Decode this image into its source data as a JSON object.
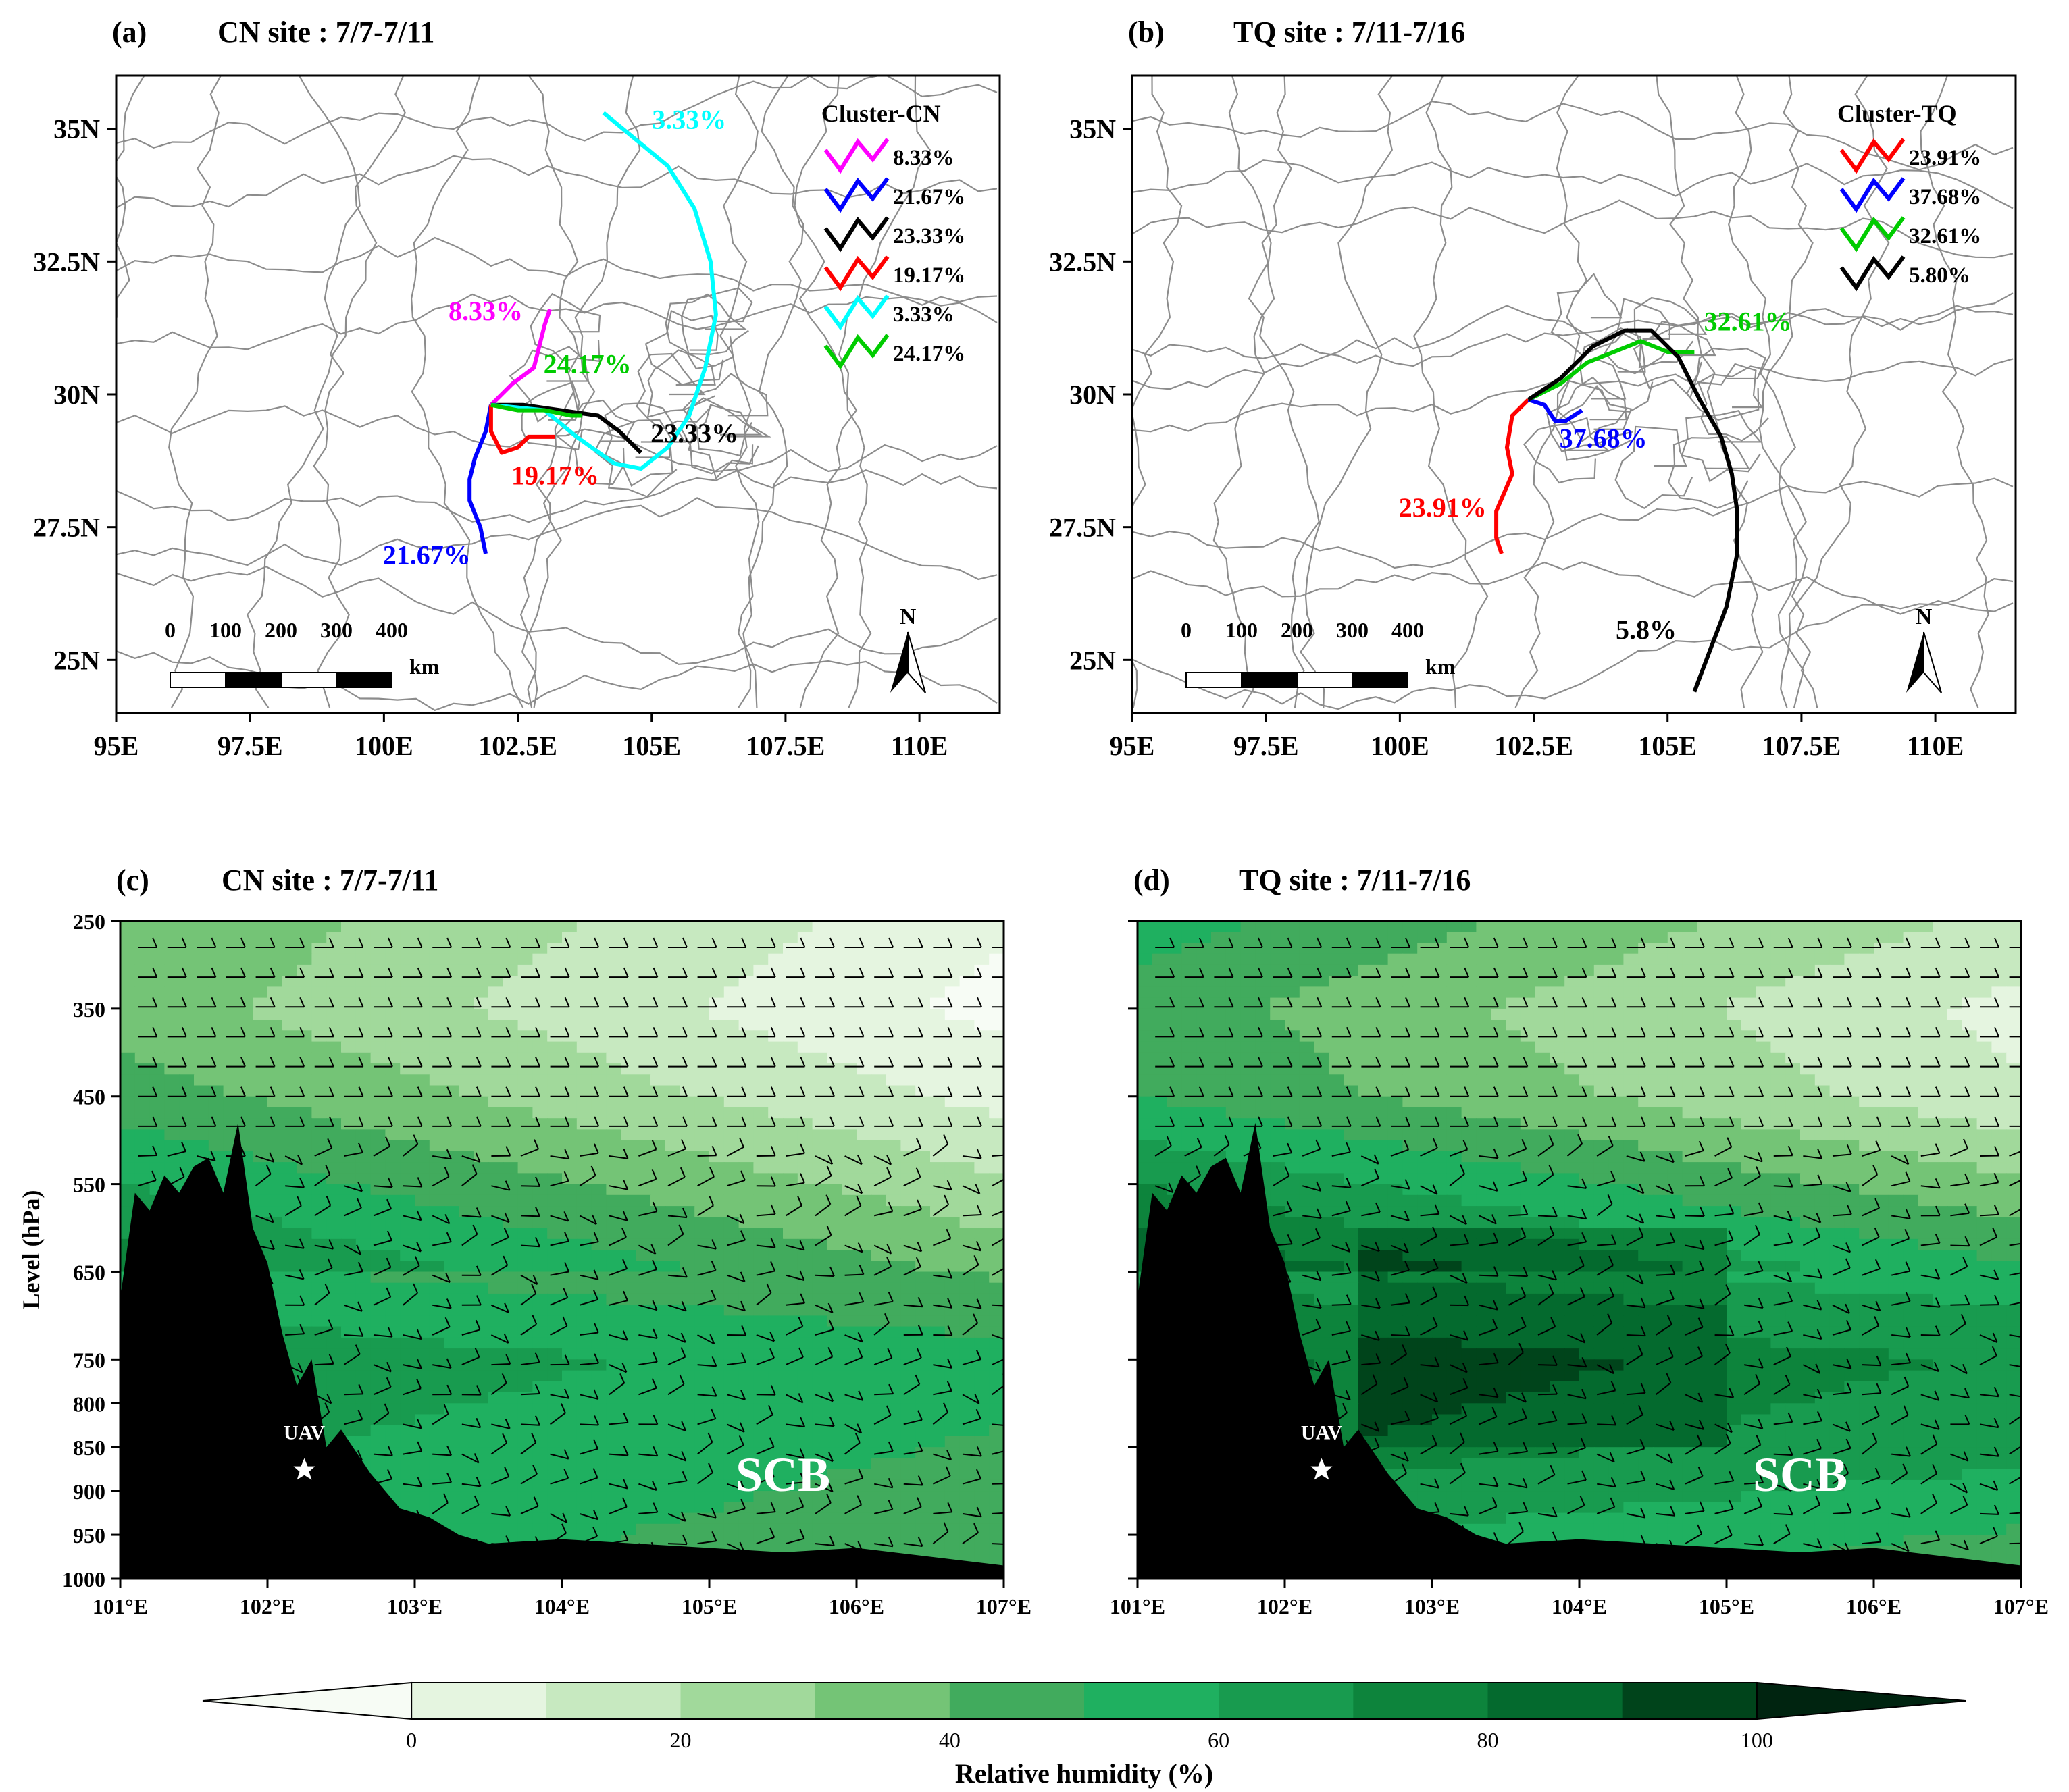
{
  "chart_data": [
    {
      "type": "line",
      "id": "a",
      "panel_label": "(a)",
      "title": "CN site : 7/7-7/11",
      "xlim": [
        95,
        111.5
      ],
      "ylim": [
        24,
        36
      ],
      "xticks": [
        {
          "v": 95,
          "t": "95E"
        },
        {
          "v": 97.5,
          "t": "97.5E"
        },
        {
          "v": 100,
          "t": "100E"
        },
        {
          "v": 102.5,
          "t": "102.5E"
        },
        {
          "v": 105,
          "t": "105E"
        },
        {
          "v": 107.5,
          "t": "107.5E"
        },
        {
          "v": 110,
          "t": "110E"
        }
      ],
      "yticks": [
        {
          "v": 25,
          "t": "25N"
        },
        {
          "v": 27.5,
          "t": "27.5N"
        },
        {
          "v": 30,
          "t": "30N"
        },
        {
          "v": 32.5,
          "t": "32.5N"
        },
        {
          "v": 35,
          "t": "35N"
        }
      ],
      "legend_title": "Cluster-CN",
      "legend_position": "top-right",
      "scale_labels": [
        "0",
        "100",
        "200",
        "300",
        "400"
      ],
      "scale_unit": "km",
      "north_label": "N",
      "series": [
        {
          "name": "8.33%",
          "label": "8.33%",
          "color": "#ff00ff",
          "label_color": "#ff00ff",
          "lonlat": [
            [
              102.0,
              29.8
            ],
            [
              102.4,
              30.2
            ],
            [
              102.8,
              30.5
            ],
            [
              102.9,
              30.9
            ],
            [
              103.0,
              31.3
            ],
            [
              103.1,
              31.6
            ]
          ],
          "label_at": [
            101.9,
            31.4
          ]
        },
        {
          "name": "21.67%",
          "label": "21.67%",
          "color": "#0000ff",
          "label_color": "#0000ff",
          "lonlat": [
            [
              102.0,
              29.8
            ],
            [
              101.9,
              29.3
            ],
            [
              101.7,
              28.8
            ],
            [
              101.6,
              28.4
            ],
            [
              101.6,
              28.0
            ],
            [
              101.8,
              27.5
            ],
            [
              101.9,
              27.0
            ]
          ],
          "label_at": [
            100.8,
            26.8
          ]
        },
        {
          "name": "23.33%",
          "label": "23.33%",
          "color": "#000000",
          "label_color": "#000000",
          "lonlat": [
            [
              102.0,
              29.8
            ],
            [
              102.6,
              29.8
            ],
            [
              103.3,
              29.7
            ],
            [
              104.0,
              29.6
            ],
            [
              104.4,
              29.3
            ],
            [
              104.7,
              29.0
            ],
            [
              104.8,
              28.9
            ]
          ],
          "label_at": [
            105.8,
            29.1
          ]
        },
        {
          "name": "19.17%",
          "label": "19.17%",
          "color": "#ff0000",
          "label_color": "#ff0000",
          "lonlat": [
            [
              102.0,
              29.8
            ],
            [
              102.0,
              29.3
            ],
            [
              102.2,
              28.9
            ],
            [
              102.5,
              29.0
            ],
            [
              102.7,
              29.2
            ],
            [
              103.2,
              29.2
            ]
          ],
          "label_at": [
            103.2,
            28.3
          ]
        },
        {
          "name": "3.33%",
          "label": "3.33%",
          "color": "#00ffff",
          "label_color": "#00ffff",
          "lonlat": [
            [
              102.0,
              29.8
            ],
            [
              103.0,
              29.7
            ],
            [
              103.6,
              29.2
            ],
            [
              104.3,
              28.7
            ],
            [
              104.8,
              28.6
            ],
            [
              105.3,
              29.0
            ],
            [
              105.7,
              29.6
            ],
            [
              106.0,
              30.5
            ],
            [
              106.2,
              31.5
            ],
            [
              106.1,
              32.5
            ],
            [
              105.8,
              33.5
            ],
            [
              105.3,
              34.3
            ],
            [
              104.1,
              35.3
            ]
          ],
          "label_at": [
            105.7,
            35.0
          ]
        },
        {
          "name": "24.17%",
          "label": "24.17%",
          "color": "#00cc00",
          "label_color": "#00cc00",
          "lonlat": [
            [
              102.0,
              29.8
            ],
            [
              102.5,
              29.7
            ],
            [
              103.0,
              29.7
            ],
            [
              103.5,
              29.6
            ],
            [
              103.7,
              29.6
            ]
          ],
          "label_at": [
            103.8,
            30.4
          ]
        }
      ]
    },
    {
      "type": "line",
      "id": "b",
      "panel_label": "(b)",
      "title": "TQ site : 7/11-7/16",
      "xlim": [
        95,
        111.5
      ],
      "ylim": [
        24,
        36
      ],
      "xticks": [
        {
          "v": 95,
          "t": "95E"
        },
        {
          "v": 97.5,
          "t": "97.5E"
        },
        {
          "v": 100,
          "t": "100E"
        },
        {
          "v": 102.5,
          "t": "102.5E"
        },
        {
          "v": 105,
          "t": "105E"
        },
        {
          "v": 107.5,
          "t": "107.5E"
        },
        {
          "v": 110,
          "t": "110E"
        }
      ],
      "yticks": [
        {
          "v": 25,
          "t": "25N"
        },
        {
          "v": 27.5,
          "t": "27.5N"
        },
        {
          "v": 30,
          "t": "30N"
        },
        {
          "v": 32.5,
          "t": "32.5N"
        },
        {
          "v": 35,
          "t": "35N"
        }
      ],
      "legend_title": "Cluster-TQ",
      "legend_position": "top-right",
      "scale_labels": [
        "0",
        "100",
        "200",
        "300",
        "400"
      ],
      "scale_unit": "km",
      "north_label": "N",
      "series": [
        {
          "name": "23.91%",
          "label": "23.91%",
          "color": "#ff0000",
          "label_color": "#ff0000",
          "lonlat": [
            [
              102.4,
              29.9
            ],
            [
              102.1,
              29.6
            ],
            [
              102.0,
              29.0
            ],
            [
              102.1,
              28.5
            ],
            [
              101.8,
              27.8
            ],
            [
              101.8,
              27.3
            ],
            [
              101.9,
              27.0
            ]
          ],
          "label_at": [
            100.8,
            27.7
          ]
        },
        {
          "name": "37.68%",
          "label": "37.68%",
          "color": "#0000ff",
          "label_color": "#0000ff",
          "lonlat": [
            [
              102.4,
              29.9
            ],
            [
              102.7,
              29.8
            ],
            [
              102.9,
              29.5
            ],
            [
              103.1,
              29.5
            ],
            [
              103.4,
              29.7
            ]
          ],
          "label_at": [
            103.8,
            29.0
          ]
        },
        {
          "name": "32.61%",
          "label": "32.61%",
          "color": "#00cc00",
          "label_color": "#00cc00",
          "lonlat": [
            [
              102.4,
              29.9
            ],
            [
              103.0,
              30.2
            ],
            [
              103.5,
              30.6
            ],
            [
              104.0,
              30.8
            ],
            [
              104.5,
              31.0
            ],
            [
              105.0,
              30.8
            ],
            [
              105.5,
              30.8
            ]
          ],
          "label_at": [
            106.5,
            31.2
          ]
        },
        {
          "name": "5.80%",
          "label": "5.8%",
          "color": "#000000",
          "label_color": "#000000",
          "lonlat": [
            [
              102.4,
              29.9
            ],
            [
              103.0,
              30.3
            ],
            [
              103.6,
              30.9
            ],
            [
              104.2,
              31.2
            ],
            [
              104.7,
              31.2
            ],
            [
              105.2,
              30.7
            ],
            [
              105.6,
              29.9
            ],
            [
              106.0,
              29.2
            ],
            [
              106.2,
              28.5
            ],
            [
              106.3,
              27.8
            ],
            [
              106.3,
              27.0
            ],
            [
              106.1,
              26.0
            ],
            [
              105.8,
              25.2
            ],
            [
              105.5,
              24.4
            ]
          ],
          "label_at": [
            104.6,
            25.4
          ]
        }
      ]
    },
    {
      "type": "heatmap",
      "id": "c",
      "panel_label": "(c)",
      "title": "CN site : 7/7-7/11",
      "xlim": [
        101,
        107
      ],
      "ylim": [
        1000,
        250
      ],
      "xlabel": "",
      "ylabel": "Level (hPa)",
      "xticks": [
        {
          "v": 101,
          "t": "101°E"
        },
        {
          "v": 102,
          "t": "102°E"
        },
        {
          "v": 103,
          "t": "103°E"
        },
        {
          "v": 104,
          "t": "104°E"
        },
        {
          "v": 105,
          "t": "105°E"
        },
        {
          "v": 106,
          "t": "106°E"
        },
        {
          "v": 107,
          "t": "107°E"
        }
      ],
      "yticks": [
        {
          "v": 250,
          "t": "250"
        },
        {
          "v": 350,
          "t": "350"
        },
        {
          "v": 450,
          "t": "450"
        },
        {
          "v": 550,
          "t": "550"
        },
        {
          "v": 650,
          "t": "650"
        },
        {
          "v": 750,
          "t": "750"
        },
        {
          "v": 800,
          "t": "800"
        },
        {
          "v": 850,
          "t": "850"
        },
        {
          "v": 900,
          "t": "900"
        },
        {
          "v": 950,
          "t": "950"
        },
        {
          "v": 1000,
          "t": "1000"
        }
      ],
      "annotation_uav": "UAV",
      "uav_position": [
        102.25,
        875
      ],
      "annotation_scb": "SCB",
      "scb_position": [
        105.5,
        900
      ],
      "rh_profile_hPa": [
        250,
        350,
        450,
        550,
        650,
        750,
        850,
        950,
        1000
      ],
      "rh_profile_pct": [
        15,
        10,
        20,
        35,
        50,
        65,
        60,
        55,
        55
      ]
    },
    {
      "type": "heatmap",
      "id": "d",
      "panel_label": "(d)",
      "title": "TQ site : 7/11-7/16",
      "xlim": [
        101,
        107
      ],
      "ylim": [
        1000,
        250
      ],
      "xlabel": "",
      "ylabel": "",
      "xticks": [
        {
          "v": 101,
          "t": "101°E"
        },
        {
          "v": 102,
          "t": "102°E"
        },
        {
          "v": 103,
          "t": "103°E"
        },
        {
          "v": 104,
          "t": "104°E"
        },
        {
          "v": 105,
          "t": "105°E"
        },
        {
          "v": 106,
          "t": "106°E"
        },
        {
          "v": 107,
          "t": "107°E"
        }
      ],
      "yticks": [
        {
          "v": 250,
          "t": ""
        },
        {
          "v": 350,
          "t": ""
        },
        {
          "v": 450,
          "t": ""
        },
        {
          "v": 550,
          "t": ""
        },
        {
          "v": 650,
          "t": ""
        },
        {
          "v": 750,
          "t": ""
        },
        {
          "v": 850,
          "t": ""
        },
        {
          "v": 950,
          "t": ""
        },
        {
          "v": 1000,
          "t": ""
        }
      ],
      "annotation_uav": "UAV",
      "uav_position": [
        102.25,
        875
      ],
      "annotation_scb": "SCB",
      "scb_position": [
        105.5,
        900
      ],
      "rh_profile_hPa": [
        250,
        350,
        450,
        550,
        650,
        750,
        850,
        950,
        1000
      ],
      "rh_profile_pct": [
        30,
        20,
        25,
        45,
        65,
        80,
        75,
        60,
        55
      ]
    }
  ],
  "colorbar": {
    "label": "Relative humidity (%)",
    "ticks": [
      {
        "v": 0,
        "t": "0"
      },
      {
        "v": 20,
        "t": "20"
      },
      {
        "v": 40,
        "t": "40"
      },
      {
        "v": 60,
        "t": "60"
      },
      {
        "v": 80,
        "t": "80"
      },
      {
        "v": 100,
        "t": "100"
      }
    ],
    "min": -10,
    "max": 100,
    "levels": [
      -10,
      0,
      10,
      20,
      30,
      40,
      50,
      60,
      70,
      80,
      90,
      100
    ],
    "colors": [
      "#f7fcf5",
      "#e5f5e0",
      "#c7e9c0",
      "#a1d99b",
      "#74c476",
      "#41ab5d",
      "#1fb060",
      "#189b4f",
      "#0d843c",
      "#046a2e",
      "#00441b",
      "#002410"
    ]
  }
}
